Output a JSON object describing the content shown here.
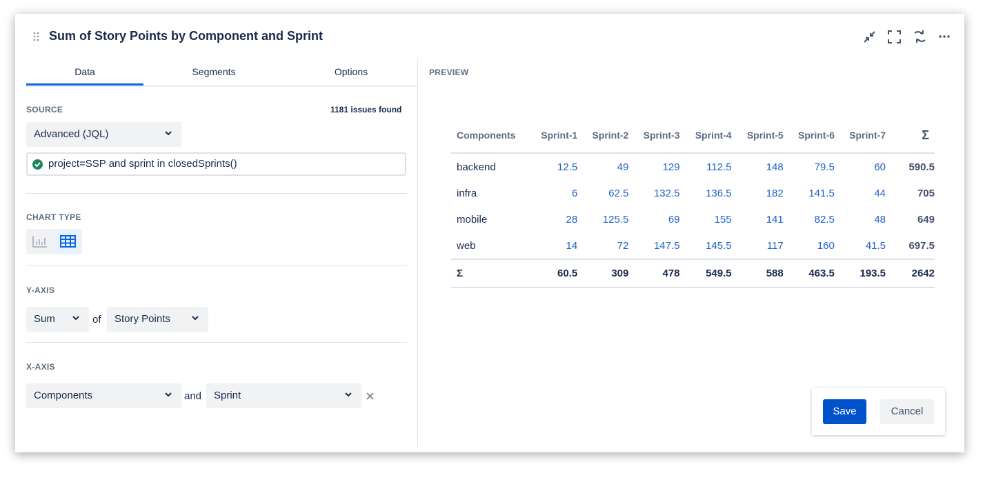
{
  "header": {
    "title": "Sum of Story Points by Component and Sprint"
  },
  "tabs": [
    "Data",
    "Segments",
    "Options"
  ],
  "source": {
    "label": "SOURCE",
    "count": "1181 issues found",
    "mode": "Advanced (JQL)",
    "query": "project=SSP and sprint in closedSprints()"
  },
  "chart_type": {
    "label": "CHART TYPE"
  },
  "y_axis": {
    "label": "Y-AXIS",
    "aggregate": "Sum",
    "joiner": "of",
    "field": "Story Points"
  },
  "x_axis": {
    "label": "X-AXIS",
    "field1": "Components",
    "joiner": "and",
    "field2": "Sprint"
  },
  "preview": {
    "label": "PREVIEW",
    "table": {
      "header": [
        "Components",
        "Sprint-1",
        "Sprint-2",
        "Sprint-3",
        "Sprint-4",
        "Sprint-5",
        "Sprint-6",
        "Sprint-7",
        "Σ"
      ],
      "rows": [
        [
          "backend",
          12.5,
          49,
          129,
          112.5,
          148,
          79.5,
          60,
          590.5
        ],
        [
          "infra",
          6,
          62.5,
          132.5,
          136.5,
          182,
          141.5,
          44,
          705
        ],
        [
          "mobile",
          28,
          125.5,
          69,
          155,
          141,
          82.5,
          48,
          649
        ],
        [
          "web",
          14,
          72,
          147.5,
          145.5,
          117,
          160,
          41.5,
          697.5
        ]
      ],
      "totals": [
        "Σ",
        60.5,
        309,
        478,
        549.5,
        588,
        463.5,
        193.5,
        2642
      ]
    }
  },
  "buttons": {
    "save": "Save",
    "cancel": "Cancel"
  }
}
